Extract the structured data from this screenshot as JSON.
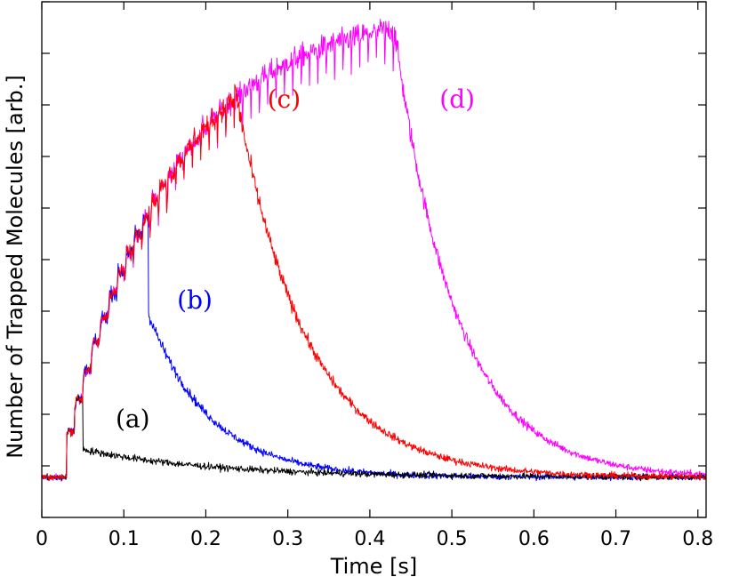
{
  "chart_data": {
    "type": "line",
    "title": "",
    "xlabel": "Time [s]",
    "ylabel": "Number of Trapped Molecules [arb.]",
    "xlim": [
      0,
      0.81
    ],
    "ylim": [
      0,
      1.0
    ],
    "xticks": [
      0,
      0.1,
      0.2,
      0.3,
      0.4,
      0.5,
      0.6,
      0.7,
      0.8
    ],
    "xtick_labels": [
      "0",
      "0.1",
      "0.2",
      "0.3",
      "0.4",
      "0.5",
      "0.6",
      "0.7",
      "0.8"
    ],
    "ytick_count": 11,
    "y_tick_labels_shown": false,
    "baseline": 0.078,
    "pulse_start": 0.03,
    "pulse_period": 0.0102,
    "loading_level_shape": "saturating, ~0.10 at 0.03 s rising to ~0.99 at 0.35 s",
    "series": [
      {
        "name": "(a)",
        "label": "(a)",
        "color": "#000000",
        "stop_loading_at": 0.05,
        "peak": 0.132,
        "decay_tau": 0.16
      },
      {
        "name": "(b)",
        "label": "(b)",
        "color": "#0000ff",
        "stop_loading_at": 0.13,
        "peak": 0.395,
        "decay_tau": 0.075
      },
      {
        "name": "(c)",
        "label": "(c)",
        "color": "#ff0000",
        "stop_loading_at": 0.235,
        "peak": 0.838,
        "decay_tau": 0.085
      },
      {
        "name": "(d)",
        "label": "(d)",
        "color": "#ff00ff",
        "stop_loading_at": 0.43,
        "peak": 0.945,
        "decay_tau": 0.075
      }
    ]
  }
}
